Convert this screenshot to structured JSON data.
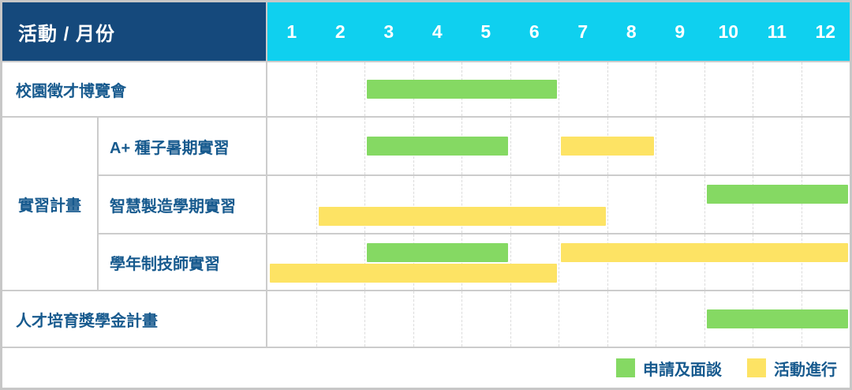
{
  "header": {
    "corner_label": "活動 / 月份",
    "months": [
      "1",
      "2",
      "3",
      "4",
      "5",
      "6",
      "7",
      "8",
      "9",
      "10",
      "11",
      "12"
    ]
  },
  "group": {
    "label": "實習計畫"
  },
  "legend": {
    "items": [
      {
        "label": "申請及面談",
        "type": "apply"
      },
      {
        "label": "活動進行",
        "type": "ongoing"
      }
    ]
  },
  "colors": {
    "apply": "#85d963",
    "ongoing": "#fde364",
    "header_navy": "#15497c",
    "header_cyan": "#0fd0ef",
    "label_text": "#175a8e",
    "grid_line": "#dbdbdb",
    "divider": "#cccccc"
  },
  "chart_data": {
    "type": "bar",
    "variant": "gantt-timeline",
    "title": "活動 / 月份",
    "x_ticks": [
      "1",
      "2",
      "3",
      "4",
      "5",
      "6",
      "7",
      "8",
      "9",
      "10",
      "11",
      "12"
    ],
    "x_range": [
      1,
      12
    ],
    "grid": "dashed-vertical-month-lines",
    "legend_position": "bottom-right",
    "legend": [
      {
        "name": "申請及面談",
        "color": "#85d963"
      },
      {
        "name": "活動進行",
        "color": "#fde364"
      }
    ],
    "group_label": "實習計畫",
    "tasks": [
      {
        "label": "校園徵才博覽會",
        "group": null,
        "bars": [
          {
            "phase": "申請及面談",
            "type": "apply",
            "start_month": 3,
            "end_month": 6,
            "lane": "center"
          }
        ]
      },
      {
        "label": "A+ 種子暑期實習",
        "group": "實習計畫",
        "bars": [
          {
            "phase": "申請及面談",
            "type": "apply",
            "start_month": 3,
            "end_month": 5,
            "lane": "center"
          },
          {
            "phase": "活動進行",
            "type": "ongoing",
            "start_month": 7,
            "end_month": 8,
            "lane": "center"
          }
        ]
      },
      {
        "label": "智慧製造學期實習",
        "group": "實習計畫",
        "bars": [
          {
            "phase": "申請及面談",
            "type": "apply",
            "start_month": 10,
            "end_month": 12,
            "lane": "top"
          },
          {
            "phase": "活動進行",
            "type": "ongoing",
            "start_month": 2,
            "end_month": 7,
            "lane": "bottom"
          }
        ]
      },
      {
        "label": "學年制技師實習",
        "group": "實習計畫",
        "bars": [
          {
            "phase": "申請及面談",
            "type": "apply",
            "start_month": 3,
            "end_month": 5,
            "lane": "top"
          },
          {
            "phase": "活動進行",
            "type": "ongoing",
            "start_month": 7,
            "end_month": 12,
            "lane": "top"
          },
          {
            "phase": "活動進行",
            "type": "ongoing",
            "start_month": 1,
            "end_month": 6,
            "lane": "bottom"
          }
        ]
      },
      {
        "label": "人才培育獎學金計畫",
        "group": null,
        "bars": [
          {
            "phase": "申請及面談",
            "type": "apply",
            "start_month": 10,
            "end_month": 12,
            "lane": "center"
          }
        ]
      }
    ]
  }
}
